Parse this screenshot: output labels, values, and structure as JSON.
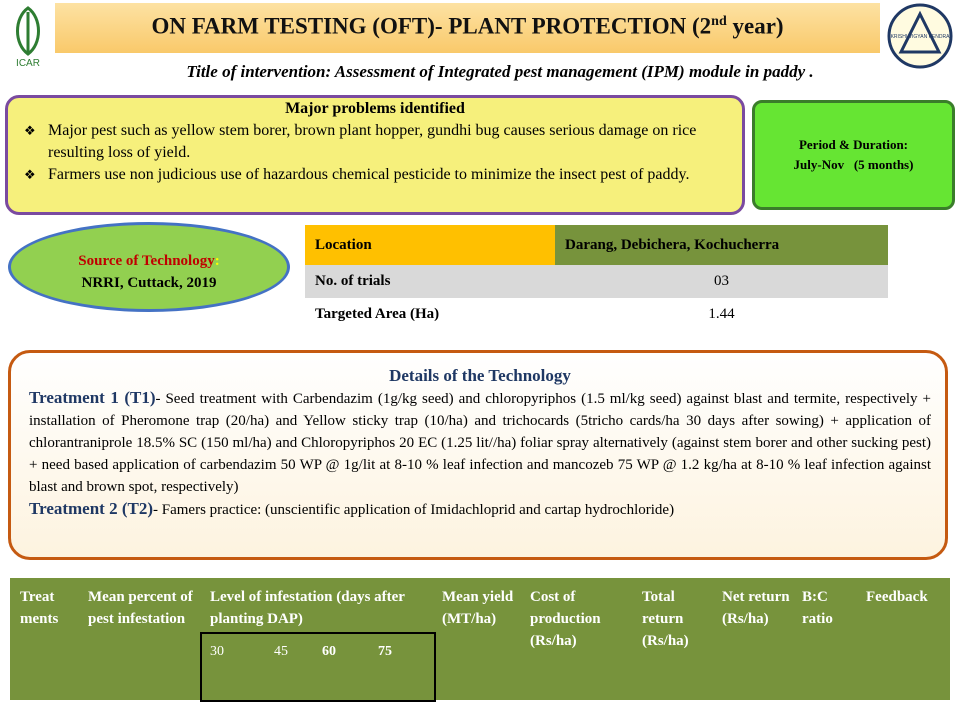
{
  "header": {
    "title_main": "ON FARM TESTING (OFT)- PLANT PROTECTION   (2",
    "title_sup": "nd",
    "title_end": "  year)",
    "logo_left": "ICAR",
    "logo_right": "KRISHI VIGYAN KENDRA"
  },
  "intervention": "Title of intervention: Assessment of Integrated pest management (IPM) module in paddy .",
  "problems": {
    "title": "Major problems identified",
    "items": [
      "Major pest such as yellow stem borer, brown plant hopper, gundhi bug causes serious damage on rice resulting loss of yield.",
      "Farmers use non judicious use of hazardous chemical pesticide to minimize the insect pest of paddy."
    ]
  },
  "period": {
    "label": "Period & Duration:",
    "value": "July-Nov   (5 months)"
  },
  "source": {
    "label": "Source of Technology",
    "colon": ":",
    "value": "NRRI, Cuttack, 2019"
  },
  "info": {
    "rows": [
      [
        "Location",
        "Darang, Debichera, Kochucherra"
      ],
      [
        "No. of trials",
        "03"
      ],
      [
        "Targeted Area (Ha)",
        "1.44"
      ]
    ]
  },
  "details": {
    "title": "Details of the Technology",
    "treatments": [
      {
        "label": "Treatment  1 (T1)",
        "text": "- Seed treatment with Carbendazim (1g/kg seed) and chloropyriphos (1.5 ml/kg seed) against blast and termite, respectively + installation of Pheromone trap (20/ha) and Yellow sticky trap (10/ha) and trichocards (5tricho cards/ha 30 days after sowing) + application of chlorantraniprole 18.5% SC (150 ml/ha) and Chloropyriphos 20 EC (1.25 lit//ha) foliar spray alternatively (against stem borer and other sucking pest) + need based application of carbendazim 50 WP @ 1g/lit at 8-10 % leaf infection and mancozeb 75 WP @ 1.2 kg/ha at 8-10 % leaf infection against blast and brown spot, respectively)"
      },
      {
        "label": "Treatment  2 (T2)",
        "text": "- Famers practice: (unscientific application of Imidachloprid and cartap hydrochloride)"
      }
    ]
  },
  "results": {
    "headers": [
      "Treat ments",
      "Mean percent of pest infestation",
      "Level of infestation (days after planting DAP)",
      "Mean yield (MT/ha)",
      "Cost of production (Rs/ha)",
      "Total return (Rs/ha)",
      "Net return (Rs/ha)",
      "B:C ratio",
      "Feedback"
    ],
    "dap": [
      "30",
      "45",
      "60",
      "75"
    ]
  }
}
